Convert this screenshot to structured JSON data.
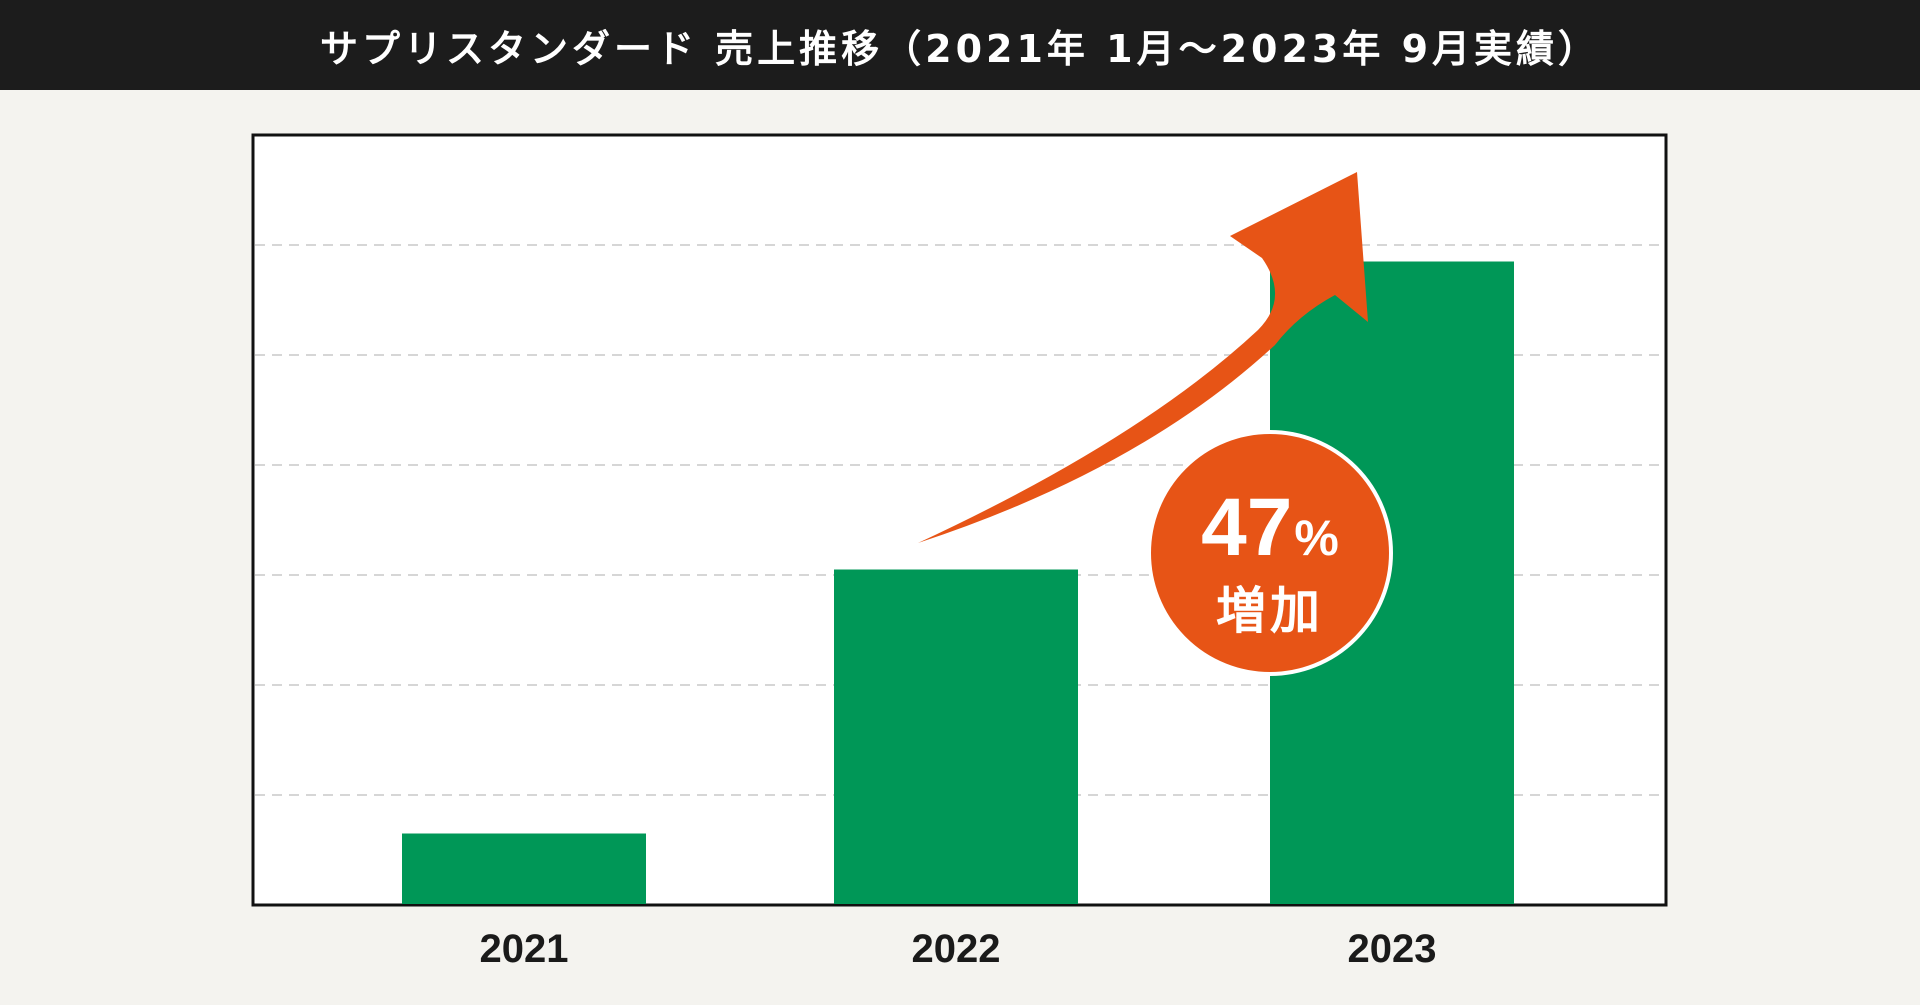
{
  "header": {
    "title": "サプリスタンダード 売上推移（2021年 1月～2023年 9月実績）"
  },
  "chart_data": {
    "type": "bar",
    "title": "サプリスタンダード 売上推移（2021年 1月～2023年 9月実績）",
    "categories": [
      "2021",
      "2022",
      "2023"
    ],
    "values": [
      0.65,
      3.05,
      5.85
    ],
    "ylim": [
      0,
      7
    ],
    "grid": true,
    "gridlines": 6,
    "xlabel": "",
    "ylabel": "",
    "annotation": {
      "percent_value": "47",
      "percent_sign": "%",
      "label": "増加"
    }
  },
  "colors": {
    "bar": "#009757",
    "arrow": "#e75416",
    "badge": "#e75416",
    "badge_border": "#ffffff",
    "title_bg": "#1c1c1c",
    "page_bg": "#f4f3ef",
    "plot_bg": "#ffffff",
    "grid": "#c9c9c9"
  }
}
